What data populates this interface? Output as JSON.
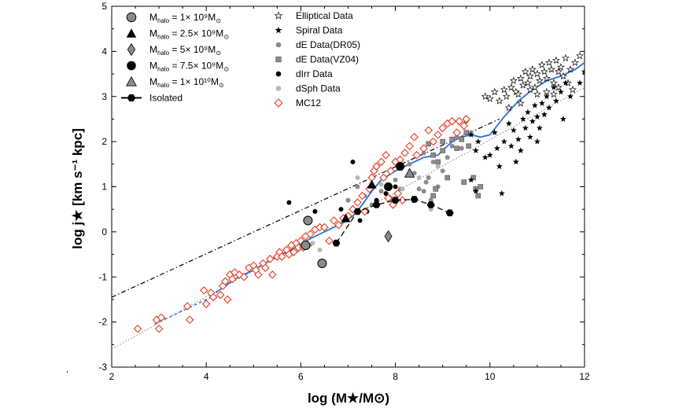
{
  "chart_data": {
    "type": "scatter",
    "title": "",
    "xlabel": "log (M★/M⊙)",
    "ylabel": "log j★ [km s⁻¹ kpc]",
    "xlim": [
      2,
      12
    ],
    "ylim": [
      -3,
      5
    ],
    "xticks": [
      2,
      4,
      6,
      8,
      10,
      12
    ],
    "yticks": [
      -3,
      -2,
      -1,
      0,
      1,
      2,
      3,
      4,
      5
    ],
    "legend_left": [
      {
        "symbol": "circle-gray",
        "text": "Mhalo = 1× 10⁹M⊙"
      },
      {
        "symbol": "triangle-black",
        "text": "Mhalo = 2.5× 10⁹M⊙"
      },
      {
        "symbol": "diamond-gray",
        "text": "Mhalo = 5× 10⁹M⊙"
      },
      {
        "symbol": "circle-black",
        "text": "Mhalo = 7.5× 10⁹M⊙"
      },
      {
        "symbol": "triangle-gray",
        "text": "Mhalo = 1× 10¹⁰M⊙"
      },
      {
        "symbol": "hexagon-line",
        "text": "Isolated"
      }
    ],
    "legend_right": [
      {
        "symbol": "star-open",
        "text": "Elliptical Data"
      },
      {
        "symbol": "star-filled",
        "text": "Spiral Data"
      },
      {
        "symbol": "dot-gray",
        "text": "dE Data(DR05)"
      },
      {
        "symbol": "square-gray",
        "text": "dE Data(VZ04)"
      },
      {
        "symbol": "dot-black",
        "text": "dIrr Data"
      },
      {
        "symbol": "dot-lightgray",
        "text": "dSph Data"
      },
      {
        "symbol": "diamond-red",
        "text": "MC12"
      }
    ],
    "colors": {
      "mc12": "#e8381c",
      "fit": "#2a6fd6",
      "gray": "#8c8c8c",
      "lightgray": "#b8b8b8",
      "black": "#000000"
    },
    "series": [
      {
        "name": "MC12",
        "marker": "diamond-red",
        "points": [
          [
            2.55,
            -2.15
          ],
          [
            2.95,
            -1.95
          ],
          [
            3.0,
            -2.15
          ],
          [
            3.05,
            -1.9
          ],
          [
            3.6,
            -1.65
          ],
          [
            3.65,
            -1.95
          ],
          [
            3.95,
            -1.3
          ],
          [
            4.0,
            -1.6
          ],
          [
            4.1,
            -1.35
          ],
          [
            4.15,
            -1.45
          ],
          [
            4.3,
            -1.4
          ],
          [
            4.35,
            -1.2
          ],
          [
            4.4,
            -1.1
          ],
          [
            4.45,
            -1.5
          ],
          [
            4.5,
            -0.95
          ],
          [
            4.55,
            -1.05
          ],
          [
            4.6,
            -0.9
          ],
          [
            4.7,
            -0.95
          ],
          [
            4.8,
            -1.0
          ],
          [
            4.9,
            -0.8
          ],
          [
            5.0,
            -0.75
          ],
          [
            5.05,
            -0.85
          ],
          [
            5.1,
            -0.95
          ],
          [
            5.2,
            -0.7
          ],
          [
            5.25,
            -0.8
          ],
          [
            5.35,
            -0.6
          ],
          [
            5.4,
            -0.95
          ],
          [
            5.5,
            -0.55
          ],
          [
            5.55,
            -0.45
          ],
          [
            5.6,
            -0.55
          ],
          [
            5.7,
            -0.4
          ],
          [
            5.75,
            -0.5
          ],
          [
            5.8,
            -0.3
          ],
          [
            5.85,
            -0.45
          ],
          [
            5.9,
            -0.25
          ],
          [
            5.95,
            -0.35
          ],
          [
            6.0,
            -0.2
          ],
          [
            6.05,
            -0.35
          ],
          [
            6.1,
            -0.1
          ],
          [
            6.15,
            -0.3
          ],
          [
            6.2,
            -0.05
          ],
          [
            6.3,
            0.05
          ],
          [
            6.4,
            0.1
          ],
          [
            6.5,
            0.1
          ],
          [
            6.6,
            -0.2
          ],
          [
            6.7,
            0.25
          ],
          [
            6.8,
            0.15
          ],
          [
            6.9,
            0.3
          ],
          [
            7.0,
            0.35
          ],
          [
            7.1,
            0.5
          ],
          [
            7.2,
            0.65
          ],
          [
            7.3,
            0.8
          ],
          [
            7.35,
            0.45
          ],
          [
            7.45,
            0.95
          ],
          [
            7.5,
            1.2
          ],
          [
            7.55,
            1.35
          ],
          [
            7.6,
            1.45
          ],
          [
            7.7,
            1.55
          ],
          [
            7.75,
            1.2
          ],
          [
            7.8,
            1.7
          ],
          [
            7.85,
            0.75
          ],
          [
            7.9,
            1.35
          ],
          [
            7.95,
            0.6
          ],
          [
            8.0,
            1.55
          ],
          [
            8.05,
            0.85
          ],
          [
            8.1,
            1.6
          ],
          [
            8.15,
            0.7
          ],
          [
            8.2,
            1.75
          ],
          [
            8.3,
            1.9
          ],
          [
            8.4,
            2.1
          ],
          [
            8.45,
            1.7
          ],
          [
            8.6,
            1.85
          ],
          [
            8.7,
            2.25
          ],
          [
            8.8,
            2.0
          ],
          [
            8.9,
            2.15
          ],
          [
            9.0,
            2.3
          ],
          [
            9.1,
            2.4
          ],
          [
            9.2,
            2.45
          ],
          [
            9.3,
            2.2
          ],
          [
            9.35,
            2.45
          ],
          [
            9.45,
            2.35
          ],
          [
            9.5,
            2.5
          ]
        ]
      },
      {
        "name": "Elliptical Data",
        "marker": "star-open",
        "points": [
          [
            9.9,
            3.0
          ],
          [
            10.0,
            2.95
          ],
          [
            10.1,
            3.1
          ],
          [
            10.2,
            2.9
          ],
          [
            10.3,
            3.15
          ],
          [
            10.35,
            3.0
          ],
          [
            10.45,
            3.2
          ],
          [
            10.5,
            3.35
          ],
          [
            10.55,
            3.1
          ],
          [
            10.6,
            3.05
          ],
          [
            10.65,
            3.4
          ],
          [
            10.7,
            3.25
          ],
          [
            10.75,
            3.55
          ],
          [
            10.8,
            3.3
          ],
          [
            10.85,
            3.45
          ],
          [
            10.9,
            3.6
          ],
          [
            10.95,
            3.2
          ],
          [
            11.0,
            3.5
          ],
          [
            11.05,
            3.35
          ],
          [
            11.1,
            3.7
          ],
          [
            11.15,
            3.55
          ],
          [
            11.2,
            3.4
          ],
          [
            11.25,
            3.75
          ],
          [
            11.3,
            3.6
          ],
          [
            11.35,
            3.3
          ],
          [
            11.4,
            3.8
          ],
          [
            11.45,
            3.55
          ],
          [
            11.5,
            3.65
          ],
          [
            11.55,
            3.45
          ],
          [
            11.6,
            3.85
          ],
          [
            11.7,
            3.6
          ],
          [
            11.8,
            3.75
          ],
          [
            11.9,
            3.9
          ],
          [
            11.0,
            3.05
          ],
          [
            10.85,
            3.15
          ],
          [
            11.2,
            3.1
          ],
          [
            11.45,
            3.2
          ],
          [
            11.35,
            3.05
          ],
          [
            10.4,
            2.75
          ],
          [
            10.65,
            2.85
          ],
          [
            11.65,
            3.3
          ],
          [
            11.75,
            3.15
          ]
        ]
      },
      {
        "name": "Spiral Data",
        "marker": "star-filled",
        "points": [
          [
            9.6,
            2.15
          ],
          [
            9.7,
            1.8
          ],
          [
            9.75,
            2.0
          ],
          [
            9.9,
            1.65
          ],
          [
            10.0,
            1.7
          ],
          [
            10.1,
            2.2
          ],
          [
            10.15,
            1.85
          ],
          [
            10.3,
            2.0
          ],
          [
            10.4,
            2.4
          ],
          [
            10.45,
            1.9
          ],
          [
            10.5,
            2.25
          ],
          [
            10.6,
            2.05
          ],
          [
            10.65,
            1.8
          ],
          [
            10.7,
            2.5
          ],
          [
            10.75,
            2.3
          ],
          [
            10.8,
            2.65
          ],
          [
            10.85,
            2.1
          ],
          [
            10.9,
            2.45
          ],
          [
            10.95,
            2.8
          ],
          [
            11.0,
            2.55
          ],
          [
            11.05,
            2.3
          ],
          [
            11.1,
            2.85
          ],
          [
            11.15,
            2.6
          ],
          [
            11.2,
            3.0
          ],
          [
            11.25,
            2.75
          ],
          [
            11.35,
            3.2
          ],
          [
            11.4,
            2.9
          ],
          [
            11.5,
            3.1
          ],
          [
            11.55,
            2.5
          ],
          [
            11.6,
            3.3
          ],
          [
            11.7,
            3.0
          ],
          [
            11.9,
            3.3
          ],
          [
            12.0,
            3.55
          ],
          [
            10.25,
            0.85
          ],
          [
            9.7,
            0.9
          ],
          [
            10.2,
            1.45
          ],
          [
            9.6,
            1.15
          ],
          [
            11.0,
            2.0
          ],
          [
            10.55,
            1.55
          ]
        ]
      },
      {
        "name": "dE Data(DR05)",
        "marker": "dot-gray",
        "points": [
          [
            7.0,
            0.7
          ],
          [
            7.2,
            1.0
          ],
          [
            7.35,
            0.8
          ],
          [
            7.5,
            0.6
          ],
          [
            7.7,
            0.9
          ],
          [
            7.9,
            0.75
          ],
          [
            8.0,
            1.15
          ],
          [
            8.1,
            0.95
          ],
          [
            8.3,
            1.5
          ],
          [
            8.4,
            1.3
          ],
          [
            8.5,
            0.95
          ],
          [
            8.6,
            0.9
          ],
          [
            8.7,
            1.2
          ],
          [
            8.75,
            0.7
          ],
          [
            8.8,
            1.55
          ],
          [
            8.9,
            1.0
          ],
          [
            9.0,
            1.35
          ],
          [
            9.1,
            1.65
          ],
          [
            9.2,
            1.9
          ],
          [
            9.3,
            2.1
          ],
          [
            9.4,
            1.85
          ],
          [
            9.5,
            2.45
          ],
          [
            9.6,
            2.2
          ],
          [
            8.6,
            1.75
          ],
          [
            8.65,
            1.1
          ]
        ]
      },
      {
        "name": "dE Data(VZ04)",
        "marker": "square-gray",
        "points": [
          [
            8.7,
            1.95
          ],
          [
            8.8,
            1.7
          ],
          [
            8.9,
            1.55
          ],
          [
            9.0,
            1.8
          ],
          [
            9.1,
            1.2
          ],
          [
            9.2,
            2.05
          ],
          [
            9.3,
            1.85
          ],
          [
            9.4,
            2.05
          ],
          [
            9.45,
            1.1
          ],
          [
            9.5,
            2.2
          ],
          [
            9.55,
            1.9
          ],
          [
            9.65,
            1.2
          ],
          [
            9.7,
            0.95
          ],
          [
            9.8,
            1.0
          ],
          [
            9.75,
            0.8
          ],
          [
            8.85,
            0.95
          ],
          [
            8.8,
            0.8
          ],
          [
            9.0,
            2.0
          ]
        ]
      },
      {
        "name": "dIrr Data",
        "marker": "dot-black",
        "points": [
          [
            5.75,
            0.65
          ],
          [
            6.3,
            0.45
          ],
          [
            6.85,
            0.5
          ],
          [
            7.1,
            1.55
          ],
          [
            7.25,
            0.25
          ],
          [
            7.4,
            0.45
          ],
          [
            7.6,
            0.7
          ],
          [
            7.8,
            0.85
          ],
          [
            8.0,
            1.0
          ]
        ]
      },
      {
        "name": "dSph Data",
        "marker": "dot-lightgray",
        "points": [
          [
            5.95,
            -0.4
          ],
          [
            6.25,
            -0.25
          ],
          [
            6.4,
            -0.4
          ],
          [
            7.2,
            1.2
          ],
          [
            7.7,
            1.05
          ],
          [
            8.15,
            0.95
          ],
          [
            8.5,
            1.2
          ],
          [
            8.75,
            0.5
          ],
          [
            8.9,
            1.45
          ]
        ]
      },
      {
        "name": "Mhalo = 1× 10⁹M⊙",
        "marker": "circle-gray",
        "points": [
          [
            6.15,
            0.25
          ],
          [
            6.1,
            -0.3
          ],
          [
            6.45,
            -0.7
          ]
        ]
      },
      {
        "name": "Mhalo = 2.5× 10⁹M⊙",
        "marker": "triangle-black",
        "points": [
          [
            7.5,
            1.05
          ],
          [
            6.95,
            0.3
          ]
        ]
      },
      {
        "name": "Mhalo = 5× 10⁹M⊙",
        "marker": "diamond-gray",
        "points": [
          [
            7.85,
            -0.1
          ]
        ]
      },
      {
        "name": "Mhalo = 7.5× 10⁹M⊙",
        "marker": "circle-black",
        "points": [
          [
            8.1,
            1.45
          ],
          [
            7.85,
            1.0
          ]
        ]
      },
      {
        "name": "Mhalo = 1× 10¹⁰M⊙",
        "marker": "triangle-gray",
        "points": [
          [
            8.3,
            1.3
          ]
        ]
      },
      {
        "name": "Isolated",
        "marker": "hexagon-line",
        "points": [
          [
            6.75,
            -0.25
          ],
          [
            7.2,
            0.45
          ],
          [
            7.6,
            0.6
          ],
          [
            8.0,
            0.7
          ],
          [
            8.4,
            0.72
          ],
          [
            8.75,
            0.6
          ],
          [
            9.15,
            0.42
          ]
        ]
      }
    ],
    "lines": [
      {
        "name": "upper-dashdot",
        "style": "dashdot",
        "points": [
          [
            2,
            -1.45
          ],
          [
            10.2,
            2.5
          ]
        ]
      },
      {
        "name": "lower-dotted",
        "style": "dotted",
        "points": [
          [
            2,
            -2.6
          ],
          [
            12,
            3.2
          ]
        ]
      },
      {
        "name": "lower-dashed-blue",
        "style": "dashed-blue",
        "points": [
          [
            2.9,
            -2.05
          ],
          [
            4.1,
            -1.45
          ]
        ]
      },
      {
        "name": "fit-curve",
        "style": "solid-blue",
        "points": [
          [
            4.2,
            -1.35
          ],
          [
            4.6,
            -1.05
          ],
          [
            5.0,
            -0.85
          ],
          [
            5.4,
            -0.6
          ],
          [
            5.8,
            -0.4
          ],
          [
            6.2,
            -0.15
          ],
          [
            6.6,
            0.05
          ],
          [
            6.9,
            0.2
          ],
          [
            7.1,
            0.35
          ],
          [
            7.3,
            0.6
          ],
          [
            7.5,
            0.9
          ],
          [
            7.7,
            1.15
          ],
          [
            8.0,
            1.35
          ],
          [
            8.3,
            1.5
          ],
          [
            8.6,
            1.65
          ],
          [
            8.9,
            1.7
          ],
          [
            9.2,
            2.0
          ],
          [
            9.4,
            2.1
          ],
          [
            9.6,
            2.15
          ],
          [
            9.8,
            2.1
          ],
          [
            10.0,
            2.15
          ],
          [
            10.3,
            2.55
          ],
          [
            10.6,
            2.9
          ],
          [
            10.9,
            3.15
          ],
          [
            11.2,
            3.35
          ],
          [
            11.5,
            3.45
          ],
          [
            11.8,
            3.6
          ],
          [
            12.0,
            3.75
          ]
        ]
      }
    ]
  }
}
